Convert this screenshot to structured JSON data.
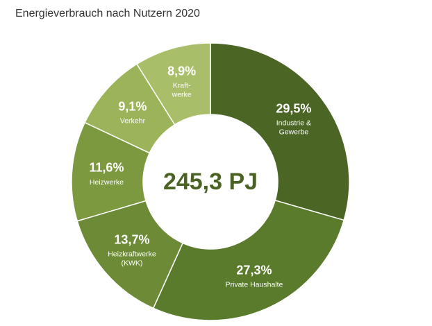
{
  "chart_data": {
    "type": "donut",
    "title": "Energieverbrauch nach Nutzern 2020",
    "center_label": "245,3 PJ",
    "categories": [
      [
        "Industrie &",
        "Gewerbe"
      ],
      [
        "Private Haushalte"
      ],
      [
        "Heizkraftwerke",
        "(KWK)"
      ],
      [
        "Heizwerke"
      ],
      [
        "Verkehr"
      ],
      [
        "Kraft-",
        "werke"
      ]
    ],
    "values": [
      29.5,
      27.3,
      13.7,
      11.6,
      9.1,
      8.9
    ],
    "value_labels": [
      "29,5%",
      "27,3%",
      "13,7%",
      "11,6%",
      "9,1%",
      "8,9%"
    ],
    "colors": [
      "#4b6525",
      "#5a7b2b",
      "#6d8b37",
      "#7c9940",
      "#9bb459",
      "#a9be68"
    ]
  }
}
